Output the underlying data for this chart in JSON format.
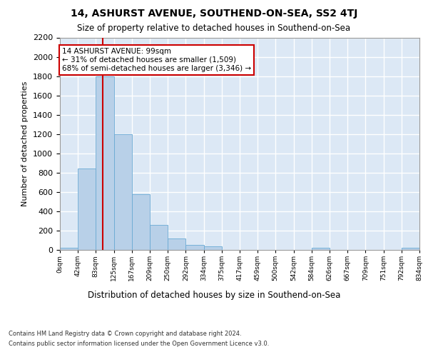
{
  "title": "14, ASHURST AVENUE, SOUTHEND-ON-SEA, SS2 4TJ",
  "subtitle": "Size of property relative to detached houses in Southend-on-Sea",
  "xlabel": "Distribution of detached houses by size in Southend-on-Sea",
  "ylabel": "Number of detached properties",
  "bar_edges": [
    0,
    42,
    83,
    125,
    167,
    209,
    250,
    292,
    334,
    375,
    417,
    459,
    500,
    542,
    584,
    626,
    667,
    709,
    751,
    792,
    834
  ],
  "bar_heights": [
    25,
    840,
    1800,
    1200,
    580,
    260,
    120,
    50,
    35,
    0,
    0,
    0,
    0,
    0,
    20,
    0,
    0,
    0,
    0,
    25
  ],
  "bar_color": "#b8d0e8",
  "bar_edgecolor": "#6aaad4",
  "ylim": [
    0,
    2200
  ],
  "yticks": [
    0,
    200,
    400,
    600,
    800,
    1000,
    1200,
    1400,
    1600,
    1800,
    2000,
    2200
  ],
  "property_size": 99,
  "vline_color": "#cc0000",
  "annotation_text": "14 ASHURST AVENUE: 99sqm\n← 31% of detached houses are smaller (1,509)\n68% of semi-detached houses are larger (3,346) →",
  "annotation_box_color": "#ffffff",
  "annotation_box_edgecolor": "#cc0000",
  "footer_line1": "Contains HM Land Registry data © Crown copyright and database right 2024.",
  "footer_line2": "Contains public sector information licensed under the Open Government Licence v3.0.",
  "plot_background": "#dce8f5",
  "grid_color": "#ffffff",
  "tick_labels": [
    "0sqm",
    "42sqm",
    "83sqm",
    "125sqm",
    "167sqm",
    "209sqm",
    "250sqm",
    "292sqm",
    "334sqm",
    "375sqm",
    "417sqm",
    "459sqm",
    "500sqm",
    "542sqm",
    "584sqm",
    "626sqm",
    "667sqm",
    "709sqm",
    "751sqm",
    "792sqm",
    "834sqm"
  ],
  "title_fontsize": 10,
  "subtitle_fontsize": 8.5,
  "ylabel_fontsize": 8,
  "xlabel_fontsize": 8.5,
  "ytick_fontsize": 8,
  "xtick_fontsize": 6.5,
  "annotation_fontsize": 7.5,
  "footer_fontsize": 6
}
